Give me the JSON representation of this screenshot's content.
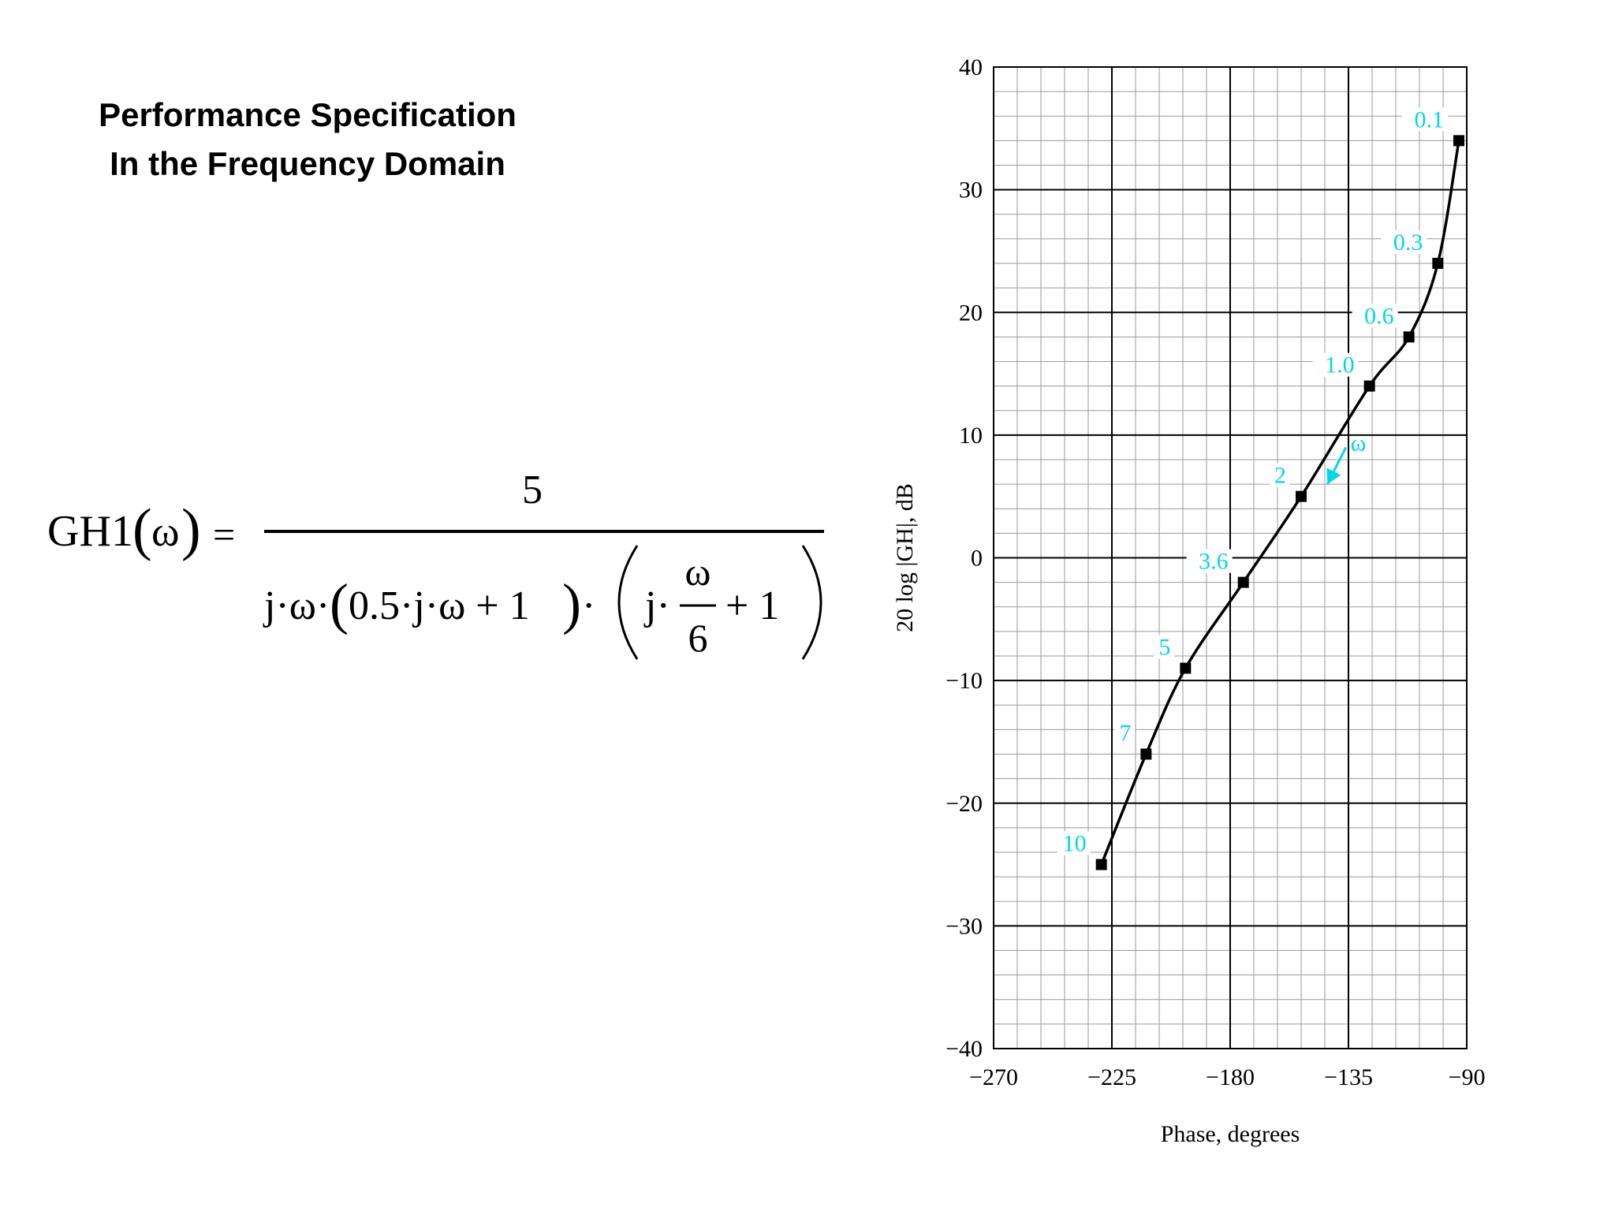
{
  "title": {
    "line1": "Performance Specification",
    "line2": "In the Frequency Domain"
  },
  "formula": {
    "lhs": "GH1",
    "variable": "ω",
    "equals": "=",
    "numerator": "5",
    "denominator_part1": "j·ω·",
    "denominator_part2": "0.5·j·ω + 1",
    "denominator_part3": "·",
    "inner_j": "j·",
    "inner_num": "ω",
    "inner_den": "6",
    "inner_plus_one": "+ 1"
  },
  "chart_data": {
    "type": "line",
    "title": "",
    "xlabel": "Phase, degrees",
    "ylabel": "20 log |GH|, dB",
    "xlim": [
      -270,
      -90
    ],
    "ylim": [
      -40,
      40
    ],
    "x_ticks": [
      -270,
      -225,
      -180,
      -135,
      -90
    ],
    "x_tick_labels": [
      "−270",
      "−225",
      "−180",
      "−135",
      "−90"
    ],
    "y_ticks": [
      40,
      30,
      20,
      10,
      0,
      -10,
      -20,
      -30,
      -40
    ],
    "y_tick_labels": [
      "40",
      "30",
      "20",
      "10",
      "0",
      "−10",
      "−20",
      "−30",
      "−40"
    ],
    "grid": true,
    "minor_grid_step_x": 9,
    "minor_grid_step_y": 2,
    "curve_color": "#000000",
    "label_color": "#00d8e8",
    "series": [
      {
        "points": [
          {
            "x": -93,
            "y": 34,
            "label": "0.1"
          },
          {
            "x": -101,
            "y": 24,
            "label": "0.3"
          },
          {
            "x": -112,
            "y": 18,
            "label": "0.6"
          },
          {
            "x": -127,
            "y": 14,
            "label": "1.0"
          },
          {
            "x": -153,
            "y": 5,
            "label": "2"
          },
          {
            "x": -175,
            "y": -2,
            "label": "3.6"
          },
          {
            "x": -197,
            "y": -9,
            "label": "5"
          },
          {
            "x": -212,
            "y": -16,
            "label": "7"
          },
          {
            "x": -229,
            "y": -25,
            "label": "10"
          }
        ]
      }
    ],
    "annotation": {
      "text": "ω",
      "arrow_from": {
        "x": -136,
        "y": 9
      },
      "arrow_to": {
        "x": -143,
        "y": 6
      }
    }
  }
}
